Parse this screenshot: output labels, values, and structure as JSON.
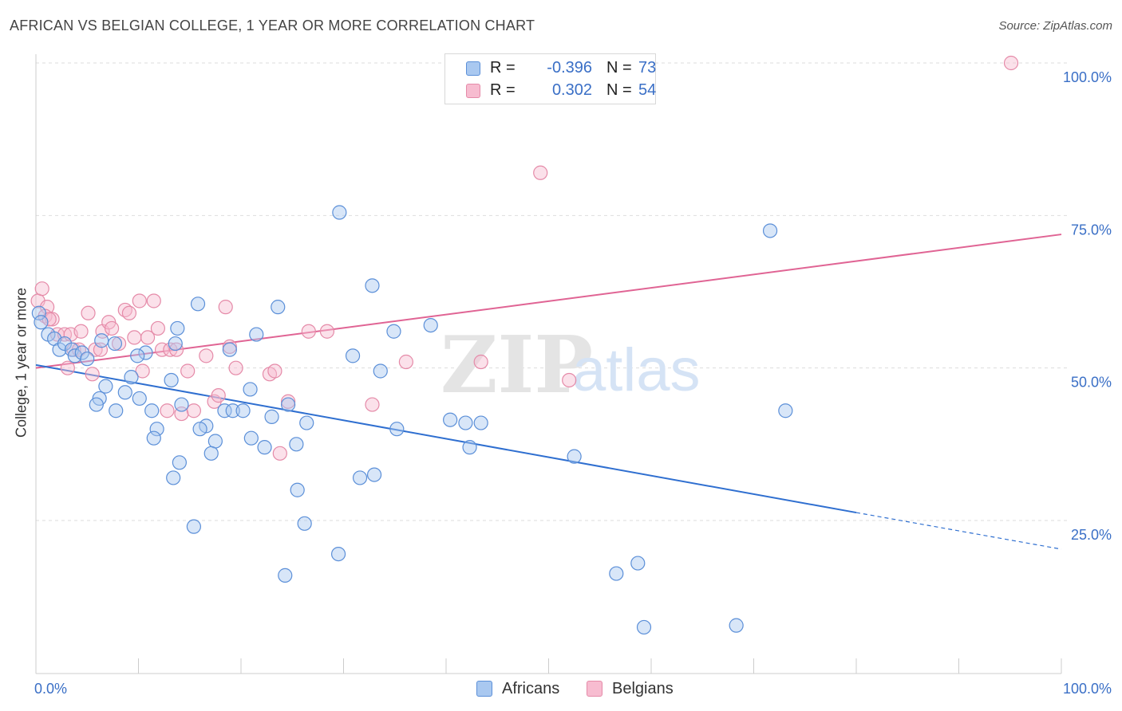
{
  "header": {
    "title": "AFRICAN VS BELGIAN COLLEGE, 1 YEAR OR MORE CORRELATION CHART",
    "source": "Source: ZipAtlas.com"
  },
  "colors": {
    "africans_fill": "#a9c8f0",
    "africans_stroke": "#5b8fd8",
    "africans_line": "#2f6fd0",
    "belgians_fill": "#f7bcd0",
    "belgians_stroke": "#e58aa8",
    "belgians_line": "#e06494",
    "axis_text": "#3a6fc6",
    "grid": "#dddddd"
  },
  "legend": {
    "africans": {
      "r_label": "R =",
      "r_value": "-0.396",
      "n_label": "N =",
      "n_value": "73"
    },
    "belgians": {
      "r_label": "R =",
      "r_value": "0.302",
      "n_label": "N =",
      "n_value": "54"
    }
  },
  "bottom_legend": {
    "africans": "Africans",
    "belgians": "Belgians"
  },
  "watermark": {
    "zip": "ZIP",
    "atlas": "atlas"
  },
  "chart_data": {
    "type": "scatter",
    "title": "AFRICAN VS BELGIAN COLLEGE, 1 YEAR OR MORE CORRELATION CHART",
    "ylabel": "College, 1 year or more",
    "xlabel": "",
    "xlim": [
      0,
      100
    ],
    "ylim": [
      0,
      105
    ],
    "x_tick_labels": [
      "0.0%",
      "100.0%"
    ],
    "y_tick_labels": [
      {
        "value": 25,
        "label": "25.0%"
      },
      {
        "value": 50,
        "label": "50.0%"
      },
      {
        "value": 75,
        "label": "75.0%"
      },
      {
        "value": 100,
        "label": "100.0%"
      }
    ],
    "grid": true,
    "legend_position": "top-center",
    "series": [
      {
        "name": "Africans",
        "trend": {
          "x0": 0,
          "y0": 50.5,
          "x1": 80,
          "y1": 26.3,
          "dashed_to_x": 100,
          "dashed_to_y": 20.3
        },
        "points": [
          [
            0.3,
            59
          ],
          [
            0.5,
            57.5
          ],
          [
            1.2,
            55.5
          ],
          [
            1.8,
            54.8
          ],
          [
            2.3,
            53
          ],
          [
            2.8,
            54
          ],
          [
            3.5,
            53
          ],
          [
            3.8,
            52
          ],
          [
            4.5,
            52.5
          ],
          [
            5,
            51.5
          ],
          [
            6.4,
            54.5
          ],
          [
            7.7,
            54
          ],
          [
            6.8,
            47
          ],
          [
            6.2,
            45
          ],
          [
            5.9,
            44
          ],
          [
            7.8,
            43
          ],
          [
            8.7,
            46
          ],
          [
            9.3,
            48.5
          ],
          [
            10.1,
            45
          ],
          [
            10.7,
            52.5
          ],
          [
            9.9,
            52
          ],
          [
            11.3,
            43
          ],
          [
            11.8,
            40
          ],
          [
            11.5,
            38.5
          ],
          [
            13.2,
            48
          ],
          [
            13.8,
            56.5
          ],
          [
            14.2,
            44
          ],
          [
            13.6,
            54
          ],
          [
            15.8,
            60.5
          ],
          [
            16.6,
            40.5
          ],
          [
            16,
            40
          ],
          [
            17.5,
            38
          ],
          [
            17.1,
            36
          ],
          [
            18.4,
            43
          ],
          [
            19.2,
            43
          ],
          [
            18.9,
            53
          ],
          [
            20.2,
            43
          ],
          [
            21,
            38.5
          ],
          [
            20.9,
            46.5
          ],
          [
            22.3,
            37
          ],
          [
            21.5,
            55.5
          ],
          [
            23.6,
            60
          ],
          [
            23,
            42
          ],
          [
            24.6,
            44
          ],
          [
            25.4,
            37.5
          ],
          [
            26.4,
            41
          ],
          [
            25.5,
            30
          ],
          [
            26.2,
            24.5
          ],
          [
            14,
            34.5
          ],
          [
            13.4,
            32
          ],
          [
            15.4,
            24
          ],
          [
            29.6,
            75.5
          ],
          [
            30.9,
            52
          ],
          [
            32.8,
            63.5
          ],
          [
            33.6,
            49.5
          ],
          [
            34.9,
            56
          ],
          [
            35.2,
            40
          ],
          [
            38.5,
            57
          ],
          [
            40.4,
            41.5
          ],
          [
            41.9,
            41
          ],
          [
            43.4,
            41
          ],
          [
            42.3,
            37
          ],
          [
            31.6,
            32
          ],
          [
            33,
            32.5
          ],
          [
            29.5,
            19.5
          ],
          [
            24.3,
            16
          ],
          [
            52.5,
            35.5
          ],
          [
            56.6,
            16.3
          ],
          [
            58.7,
            18
          ],
          [
            59.3,
            7.5
          ],
          [
            71.6,
            72.5
          ],
          [
            73.1,
            43
          ],
          [
            68.3,
            7.8
          ]
        ]
      },
      {
        "name": "Belgians",
        "trend": {
          "x0": 0,
          "y0": 50,
          "x1": 100,
          "y1": 71.9
        },
        "points": [
          [
            0.2,
            61
          ],
          [
            0.6,
            63
          ],
          [
            1.1,
            60
          ],
          [
            0.9,
            58.5
          ],
          [
            1.6,
            58
          ],
          [
            1.3,
            58
          ],
          [
            2.1,
            55.5
          ],
          [
            2.8,
            55.5
          ],
          [
            3.1,
            50
          ],
          [
            3.4,
            55.5
          ],
          [
            3.7,
            53
          ],
          [
            4.4,
            56
          ],
          [
            4.2,
            53
          ],
          [
            5.1,
            59
          ],
          [
            5.5,
            49
          ],
          [
            5.8,
            53
          ],
          [
            6.3,
            53
          ],
          [
            6.5,
            56
          ],
          [
            7.1,
            57.5
          ],
          [
            7.4,
            56.5
          ],
          [
            8.1,
            54
          ],
          [
            8.7,
            59.5
          ],
          [
            9.1,
            59
          ],
          [
            9.6,
            55
          ],
          [
            10.1,
            61
          ],
          [
            10.4,
            49.5
          ],
          [
            10.9,
            55
          ],
          [
            11.5,
            61
          ],
          [
            11.9,
            56.5
          ],
          [
            12.3,
            53
          ],
          [
            13.1,
            53
          ],
          [
            13.7,
            53
          ],
          [
            12.8,
            43
          ],
          [
            14.2,
            42.5
          ],
          [
            14.8,
            49.5
          ],
          [
            15.4,
            43
          ],
          [
            16.6,
            52
          ],
          [
            17.4,
            44.5
          ],
          [
            17.8,
            45.5
          ],
          [
            18.5,
            60
          ],
          [
            18.9,
            53.5
          ],
          [
            19.5,
            50
          ],
          [
            22.8,
            49
          ],
          [
            23.3,
            49.5
          ],
          [
            23.8,
            36
          ],
          [
            24.6,
            44.5
          ],
          [
            26.6,
            56
          ],
          [
            28.4,
            56
          ],
          [
            32.8,
            44
          ],
          [
            36.1,
            51
          ],
          [
            43.4,
            51
          ],
          [
            52,
            48
          ],
          [
            49.2,
            82
          ],
          [
            95.1,
            100
          ]
        ]
      }
    ]
  }
}
